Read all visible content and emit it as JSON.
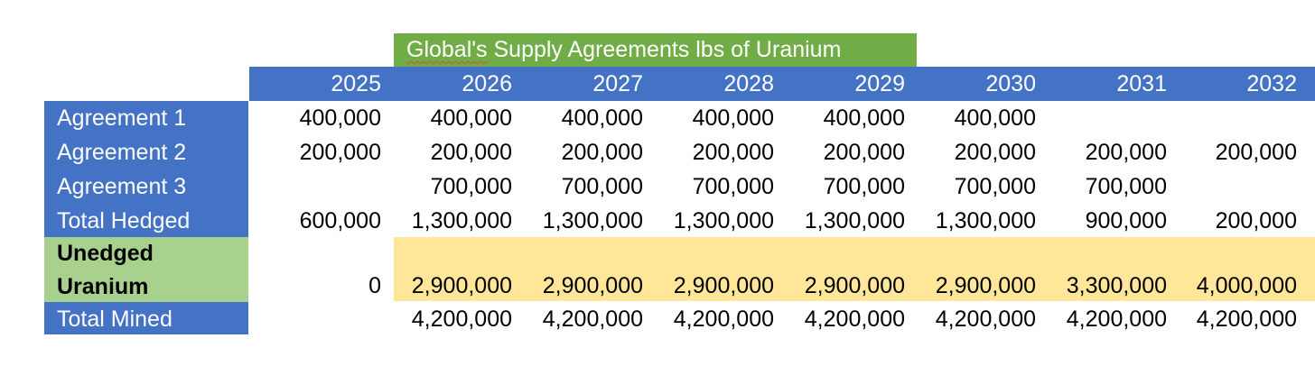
{
  "title_prefix": "Global's",
  "title_rest": " Supply Agreements lbs of Uranium",
  "years": [
    "2025",
    "2026",
    "2027",
    "2028",
    "2029",
    "2030",
    "2031",
    "2032"
  ],
  "rows": [
    {
      "label": "Agreement 1",
      "values": [
        "400,000",
        "400,000",
        "400,000",
        "400,000",
        "400,000",
        "400,000",
        "",
        ""
      ]
    },
    {
      "label": "Agreement 2",
      "values": [
        "200,000",
        "200,000",
        "200,000",
        "200,000",
        "200,000",
        "200,000",
        "200,000",
        "200,000"
      ]
    },
    {
      "label": "Agreement 3",
      "values": [
        "",
        "700,000",
        "700,000",
        "700,000",
        "700,000",
        "700,000",
        "700,000",
        ""
      ]
    },
    {
      "label": "Total Hedged",
      "values": [
        "600,000",
        "1,300,000",
        "1,300,000",
        "1,300,000",
        "1,300,000",
        "1,300,000",
        "900,000",
        "200,000"
      ]
    }
  ],
  "unhedged": {
    "label_line1": "Unedged",
    "label_line2": "Uranium",
    "values": [
      "0",
      "2,900,000",
      "2,900,000",
      "2,900,000",
      "2,900,000",
      "2,900,000",
      "3,300,000",
      "4,000,000"
    ]
  },
  "total_mined": {
    "label": "Total Mined",
    "values": [
      "",
      "4,200,000",
      "4,200,000",
      "4,200,000",
      "4,200,000",
      "4,200,000",
      "4,200,000",
      "4,200,000"
    ]
  },
  "colors": {
    "header_blue": "#4472c4",
    "title_green": "#70ad47",
    "label_green": "#a9d18e",
    "highlight_yellow": "#ffe699"
  }
}
